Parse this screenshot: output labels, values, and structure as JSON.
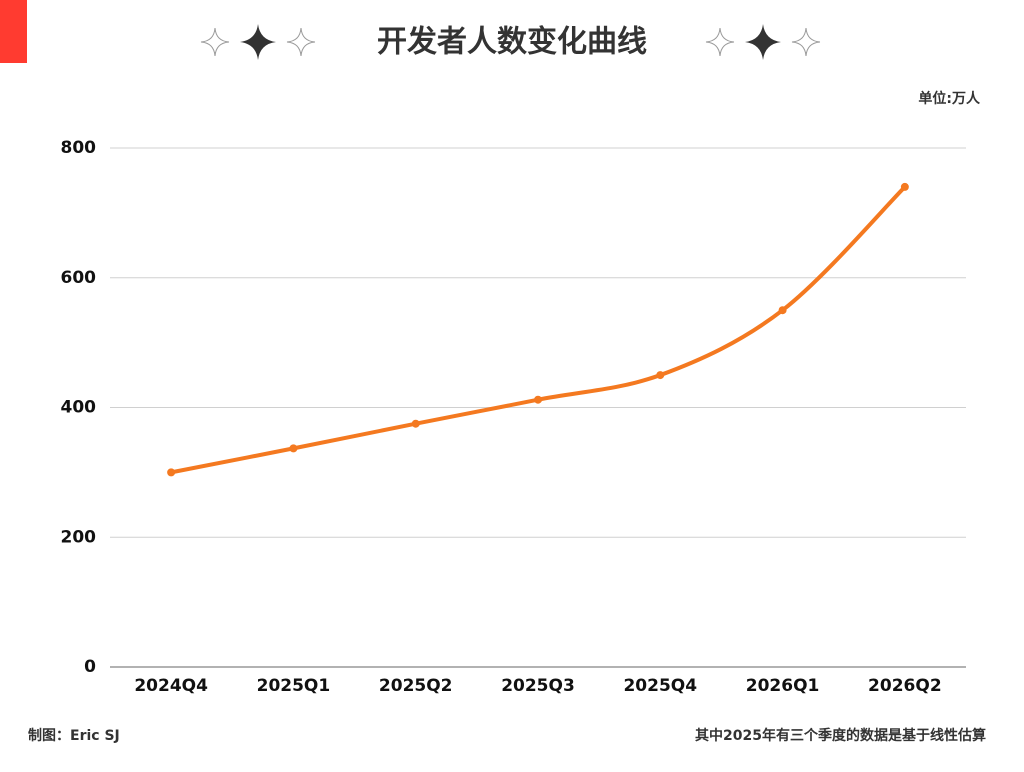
{
  "chart_data": {
    "type": "line",
    "title": "开发者人数变化曲线",
    "unit_label": "单位:万人",
    "categories": [
      "2024Q4",
      "2025Q1",
      "2025Q2",
      "2025Q3",
      "2025Q4",
      "2026Q1",
      "2026Q2"
    ],
    "series": [
      {
        "name": "开发者人数",
        "color": "#f47920",
        "values": [
          300,
          337,
          375,
          412,
          450,
          550,
          740
        ]
      }
    ],
    "ylim": [
      0,
      800
    ],
    "yticks": [
      0,
      200,
      400,
      600,
      800
    ],
    "grid": true,
    "smooth": true,
    "footer_left": "制图：Eric SJ",
    "footer_right": "其中2025年有三个季度的数据是基于线性估算"
  }
}
